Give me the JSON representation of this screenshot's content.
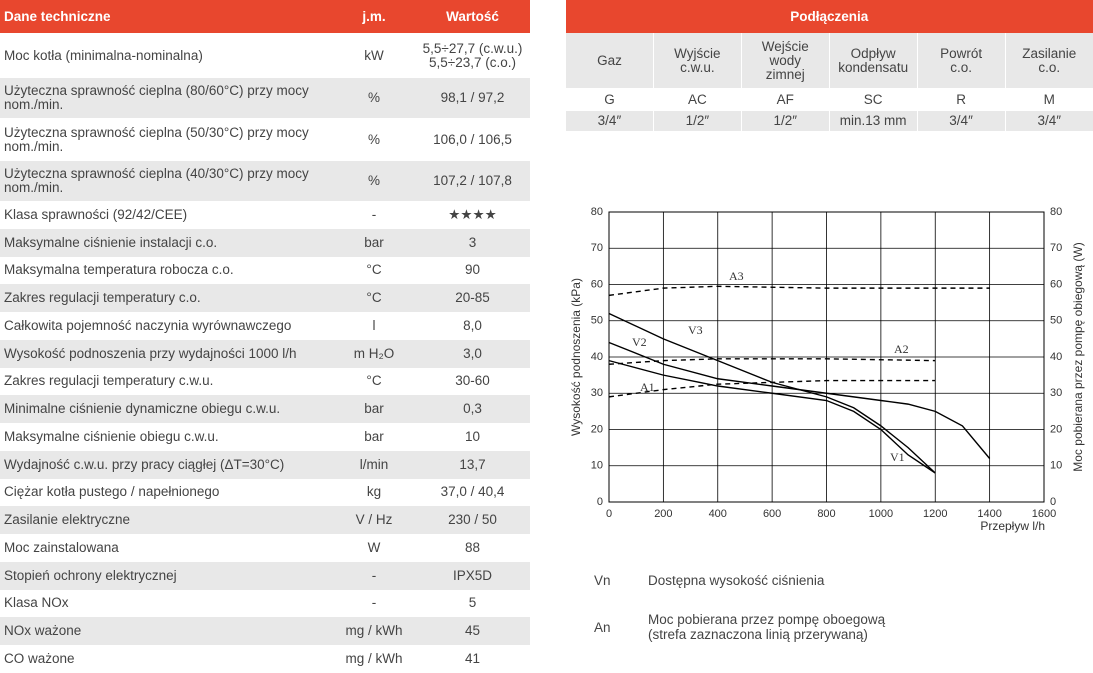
{
  "specs": {
    "header": [
      "Dane techniczne",
      "j.m.",
      "Wartość"
    ],
    "rows": [
      [
        "Moc kotła (minimalna-nominalna)",
        "kW",
        "5,5÷27,7 (c.w.u.)\n5,5÷23,7 (c.o.)"
      ],
      [
        "Użyteczna sprawność cieplna (80/60°C) przy mocy nom./min.",
        "%",
        "98,1 / 97,2"
      ],
      [
        "Użyteczna sprawność cieplna (50/30°C) przy mocy nom./min.",
        "%",
        "106,0 / 106,5"
      ],
      [
        "Użyteczna sprawność cieplna (40/30°C) przy mocy nom./min.",
        "%",
        "107,2 / 107,8"
      ],
      [
        "Klasa sprawności (92/42/CEE)",
        "-",
        "★★★★"
      ],
      [
        "Maksymalne ciśnienie instalacji c.o.",
        "bar",
        "3"
      ],
      [
        "Maksymalna temperatura robocza c.o.",
        "°C",
        "90"
      ],
      [
        "Zakres regulacji temperatury c.o.",
        "°C",
        "20-85"
      ],
      [
        "Całkowita pojemność naczynia wyrównawczego",
        "l",
        "8,0"
      ],
      [
        "Wysokość podnoszenia przy wydajności 1000 l/h",
        "m H₂O",
        "3,0"
      ],
      [
        "Zakres regulacji temperatury c.w.u.",
        "°C",
        "30-60"
      ],
      [
        "Minimalne ciśnienie dynamiczne obiegu c.w.u.",
        "bar",
        "0,3"
      ],
      [
        "Maksymalne ciśnienie obiegu c.w.u.",
        "bar",
        "10"
      ],
      [
        "Wydajność c.w.u. przy pracy ciągłej (ΔT=30°C)",
        "l/min",
        "13,7"
      ],
      [
        "Ciężar kotła pustego / napełnionego",
        "kg",
        "37,0 / 40,4"
      ],
      [
        "Zasilanie elektryczne",
        "V / Hz",
        "230 / 50"
      ],
      [
        "Moc zainstalowana",
        "W",
        "88"
      ],
      [
        "Stopień ochrony elektrycznej",
        "-",
        "IPX5D"
      ],
      [
        "Klasa NOx",
        "-",
        "5"
      ],
      [
        "NOx ważone",
        "mg / kWh",
        "45"
      ],
      [
        "CO ważone",
        "mg / kWh",
        "41"
      ]
    ]
  },
  "connections": {
    "title": "Podłączenia",
    "header": [
      "Gaz",
      "Wyjście\nc.w.u.",
      "Wejście\nwody\nzimnej",
      "Odpływ\nkondensatu",
      "Powrót\nc.o.",
      "Zasilanie\nc.o."
    ],
    "codes": [
      "G",
      "AC",
      "AF",
      "SC",
      "R",
      "M"
    ],
    "sizes": [
      "3/4″",
      "1/2″",
      "1/2″",
      "min.13 mm",
      "3/4″",
      "3/4″"
    ]
  },
  "chart_data": {
    "type": "line",
    "y_label": "Wysokość podnoszenia (kPa)",
    "y2_label": "Moc pobierana przez pompę obiegową (W)",
    "x_label": "Przepływ l/h",
    "xlim": [
      0,
      1600
    ],
    "xticks": [
      0,
      200,
      400,
      600,
      800,
      1000,
      1200,
      1400,
      1600
    ],
    "ylim": [
      0,
      80
    ],
    "yticks": [
      0,
      10,
      20,
      30,
      40,
      50,
      60,
      70,
      80
    ],
    "y2lim": [
      0,
      80
    ],
    "y2ticks": [
      0,
      10,
      20,
      30,
      40,
      50,
      60,
      70,
      80
    ],
    "grid": true,
    "series": [
      {
        "name": "V1",
        "color": "#000000",
        "x": [
          0,
          200,
          400,
          600,
          800,
          900,
          1000,
          1100,
          1200
        ],
        "values": [
          39,
          35,
          32,
          30,
          28,
          25,
          20,
          13,
          8
        ]
      },
      {
        "name": "V2",
        "color": "#000000",
        "x": [
          0,
          200,
          400,
          600,
          800,
          1000,
          1100,
          1200,
          1300,
          1400
        ],
        "values": [
          44,
          38,
          34,
          32,
          30,
          28,
          27,
          25,
          21,
          12
        ]
      },
      {
        "name": "V3",
        "color": "#000000",
        "x": [
          0,
          200,
          400,
          600,
          800,
          900,
          1000,
          1100,
          1200
        ],
        "values": [
          52,
          45,
          39,
          33,
          29,
          26,
          21,
          15,
          8
        ]
      },
      {
        "name": "A1",
        "color": "#000000",
        "dashed": true,
        "axis": "y2",
        "x": [
          0,
          200,
          400,
          600,
          800,
          1200
        ],
        "values": [
          29,
          31,
          32.5,
          33,
          33.5,
          33.5
        ]
      },
      {
        "name": "A2",
        "color": "#000000",
        "dashed": true,
        "axis": "y2",
        "x": [
          0,
          200,
          400,
          800,
          1200
        ],
        "values": [
          38,
          39,
          39.5,
          39.5,
          39
        ]
      },
      {
        "name": "A3",
        "color": "#000000",
        "dashed": true,
        "axis": "y2",
        "x": [
          0,
          200,
          400,
          800,
          1400
        ],
        "values": [
          57,
          59,
          59.5,
          59,
          59
        ]
      }
    ]
  },
  "legend": [
    {
      "symbol": "Vn",
      "text": "Dostępna wysokość ciśnienia"
    },
    {
      "symbol": "An",
      "text": "Moc pobierana przez pompę oboegową\n(strefa zaznaczona linią przerywaną)"
    }
  ]
}
